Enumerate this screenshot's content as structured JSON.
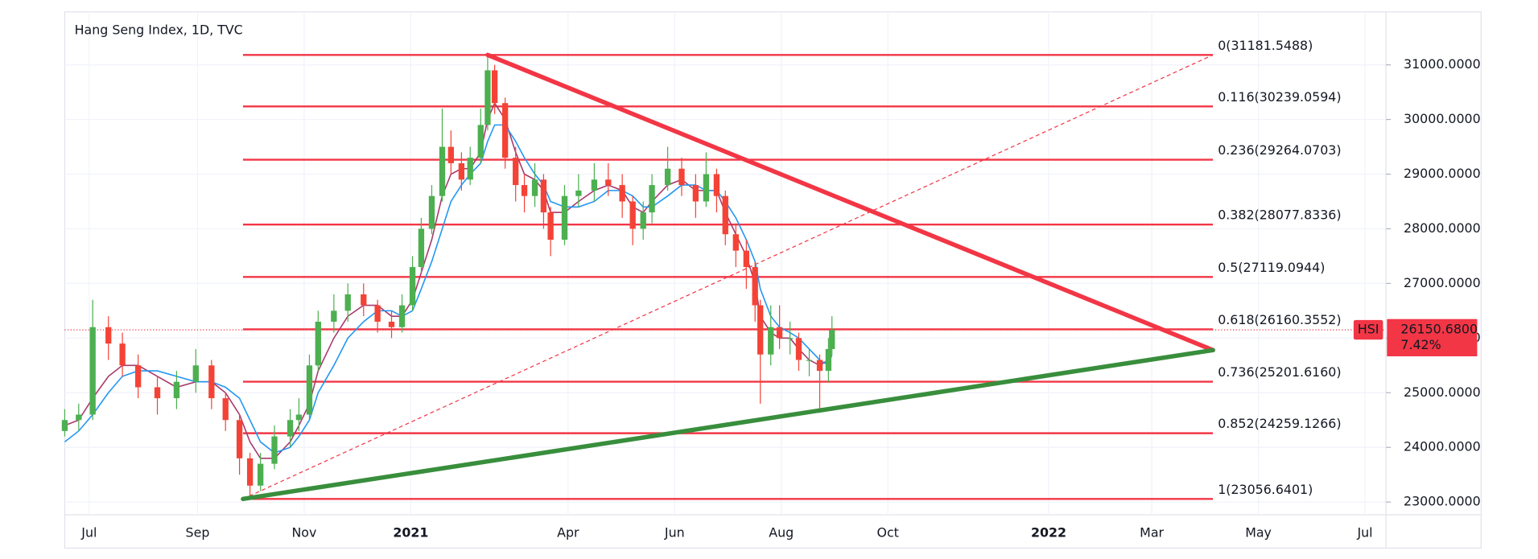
{
  "chart_data": {
    "type": "candlestick",
    "title": "Hang Seng Index, 1D, TVC",
    "xlim": [
      -14,
      742
    ],
    "xticks": [
      {
        "value": 0,
        "label": "Jul"
      },
      {
        "value": 62,
        "label": "Sep"
      },
      {
        "value": 123,
        "label": "Nov"
      },
      {
        "value": 184,
        "label": "2021"
      },
      {
        "value": 274,
        "label": "Apr"
      },
      {
        "value": 335,
        "label": "Jun"
      },
      {
        "value": 396,
        "label": "Aug"
      },
      {
        "value": 457,
        "label": "Oct"
      },
      {
        "value": 549,
        "label": "2022"
      },
      {
        "value": 608,
        "label": "Mar"
      },
      {
        "value": 669,
        "label": "May"
      },
      {
        "value": 730,
        "label": "Jul"
      }
    ],
    "ylim": [
      22767,
      31969
    ],
    "yticks": [
      {
        "value": 23000,
        "label": "23000.0000"
      },
      {
        "value": 24000,
        "label": "24000.0000"
      },
      {
        "value": 25000,
        "label": "25000.0000"
      },
      {
        "value": 26000,
        "label": "26000.0000"
      },
      {
        "value": 27000,
        "label": "27000.0000"
      },
      {
        "value": 28000,
        "label": "28000.0000"
      },
      {
        "value": 29000,
        "label": "29000.0000"
      },
      {
        "value": 30000,
        "label": "30000.0000"
      },
      {
        "value": 31000,
        "label": "31000.0000"
      }
    ],
    "grid": true,
    "up_color": "#4caf50",
    "down_color": "#f44336",
    "x": [
      -14,
      -6,
      2,
      11,
      19,
      28,
      39,
      50,
      61,
      70,
      78,
      86,
      92,
      98,
      106,
      115,
      120,
      126,
      131,
      140,
      148,
      157,
      165,
      173,
      179,
      185,
      190,
      196,
      202,
      207,
      213,
      218,
      224,
      228,
      232,
      238,
      244,
      249,
      255,
      260,
      264,
      272,
      280,
      289,
      297,
      305,
      311,
      317,
      322,
      331,
      339,
      347,
      353,
      359,
      364,
      370,
      376,
      381,
      384,
      390,
      395,
      401,
      406,
      412,
      418,
      423,
      425
    ],
    "open": [
      24300,
      24500,
      24600,
      26200,
      25900,
      25500,
      25100,
      24900,
      25200,
      25500,
      24900,
      24500,
      23800,
      23300,
      23700,
      24200,
      24500,
      24600,
      25500,
      26300,
      26500,
      26800,
      26600,
      26300,
      26200,
      26600,
      27300,
      28000,
      28600,
      29500,
      29200,
      28900,
      29300,
      29900,
      30900,
      30300,
      29300,
      28800,
      28600,
      28900,
      28300,
      27800,
      28600,
      28700,
      28900,
      28800,
      28500,
      28000,
      28300,
      28800,
      29100,
      28800,
      28500,
      29000,
      28600,
      27900,
      27600,
      27300,
      26600,
      25700,
      26200,
      26000,
      26000,
      25600,
      25600,
      25400,
      25800
    ],
    "high": [
      24700,
      24800,
      26700,
      26400,
      26100,
      25700,
      25300,
      25400,
      25800,
      25600,
      25000,
      24600,
      23900,
      23900,
      24400,
      24700,
      24900,
      25700,
      26500,
      26800,
      27000,
      27000,
      26700,
      26500,
      26800,
      27500,
      28200,
      28800,
      30200,
      29800,
      29400,
      29500,
      30200,
      31182,
      31000,
      30400,
      29500,
      29000,
      29200,
      29000,
      28400,
      28800,
      29000,
      29200,
      29200,
      29000,
      28600,
      28500,
      29000,
      29500,
      29300,
      29000,
      29400,
      29100,
      28700,
      28100,
      27800,
      27400,
      26700,
      26600,
      26600,
      26300,
      26100,
      25800,
      25700,
      26000,
      26400
    ],
    "low": [
      24200,
      24300,
      24500,
      25600,
      25300,
      24900,
      24600,
      24700,
      25000,
      24700,
      24300,
      23500,
      23057,
      23200,
      23600,
      24000,
      24300,
      24500,
      25400,
      26100,
      26300,
      26400,
      26100,
      26000,
      26100,
      26500,
      27200,
      27900,
      28500,
      29000,
      28700,
      28800,
      29200,
      29800,
      30100,
      29100,
      28500,
      28300,
      28400,
      28000,
      27500,
      27700,
      28400,
      28500,
      28600,
      28200,
      27700,
      27800,
      28100,
      28700,
      28600,
      28200,
      28400,
      28300,
      27700,
      27300,
      26900,
      26300,
      24800,
      25500,
      25800,
      25700,
      25400,
      25300,
      24700,
      25200,
      25700
    ],
    "close": [
      24500,
      24600,
      26200,
      25900,
      25500,
      25100,
      24900,
      25200,
      25500,
      24900,
      24500,
      23800,
      23300,
      23700,
      24200,
      24500,
      24600,
      25500,
      26300,
      26500,
      26800,
      26600,
      26300,
      26200,
      26600,
      27300,
      28000,
      28600,
      29500,
      29200,
      28900,
      29300,
      29900,
      30900,
      30300,
      29300,
      28800,
      28600,
      28900,
      28300,
      27800,
      28600,
      28700,
      28900,
      28800,
      28500,
      28000,
      28300,
      28800,
      29100,
      28800,
      28500,
      29000,
      28600,
      27900,
      27600,
      27300,
      26600,
      25700,
      26200,
      26000,
      26000,
      25600,
      25600,
      25400,
      25800,
      26150
    ],
    "series": [
      {
        "color": "#a8396b",
        "values": [
          24400,
          24500,
          24900,
          25300,
          25500,
          25500,
          25300,
          25100,
          25200,
          25200,
          25000,
          24600,
          24100,
          23800,
          23800,
          24100,
          24400,
          24800,
          25400,
          26000,
          26400,
          26600,
          26600,
          26400,
          26400,
          26700,
          27200,
          27800,
          28600,
          29000,
          29100,
          29100,
          29400,
          30000,
          30300,
          30000,
          29400,
          29000,
          28900,
          28700,
          28300,
          28300,
          28500,
          28700,
          28800,
          28700,
          28400,
          28300,
          28500,
          28800,
          28900,
          28700,
          28700,
          28700,
          28300,
          27900,
          27500,
          27000,
          26400,
          26100,
          26000,
          26000,
          25800,
          25600,
          25500,
          25600,
          25900
        ]
      },
      {
        "color": "#2196f3",
        "values": [
          24100,
          24300,
          24600,
          25000,
          25300,
          25400,
          25400,
          25300,
          25200,
          25200,
          25100,
          24900,
          24500,
          24100,
          23900,
          24000,
          24200,
          24500,
          25000,
          25500,
          26000,
          26300,
          26500,
          26500,
          26400,
          26500,
          26900,
          27400,
          28000,
          28500,
          28800,
          29000,
          29200,
          29600,
          29900,
          29900,
          29600,
          29300,
          29000,
          28800,
          28500,
          28400,
          28400,
          28500,
          28700,
          28700,
          28600,
          28400,
          28400,
          28600,
          28800,
          28800,
          28700,
          28700,
          28500,
          28200,
          27800,
          27400,
          26900,
          26400,
          26200,
          26100,
          26000,
          25800,
          25600,
          25500,
          25700
        ]
      }
    ],
    "fib_color": "#f23645",
    "fib_x": [
      88,
      643
    ],
    "fib_levels": [
      {
        "label": "0(31181.5488)",
        "value": 31181.5488
      },
      {
        "label": "0.116(30239.0594)",
        "value": 30239.0594
      },
      {
        "label": "0.236(29264.0703)",
        "value": 29264.0703
      },
      {
        "label": "0.382(28077.8336)",
        "value": 28077.8336
      },
      {
        "label": "0.5(27119.0944)",
        "value": 27119.0944
      },
      {
        "label": "0.618(26160.3552)",
        "value": 26160.3552
      },
      {
        "label": "0.736(25201.6160)",
        "value": 25201.616
      },
      {
        "label": "0.852(24259.1266)",
        "value": 24259.1266
      },
      {
        "label": "1(23056.6401)",
        "value": 23056.6401
      }
    ],
    "trendlines": [
      {
        "color": "#f23645",
        "x": [
          228,
          643
        ],
        "y": [
          31181.5488,
          25780
        ]
      },
      {
        "color": "#388e3c",
        "x": [
          88,
          643
        ],
        "y": [
          23056.6401,
          25780
        ]
      }
    ],
    "last_price": {
      "symbol": "HSI",
      "value": 26150.68,
      "label": "26150.6800",
      "change": "7.42%",
      "color": "#f23645"
    }
  }
}
